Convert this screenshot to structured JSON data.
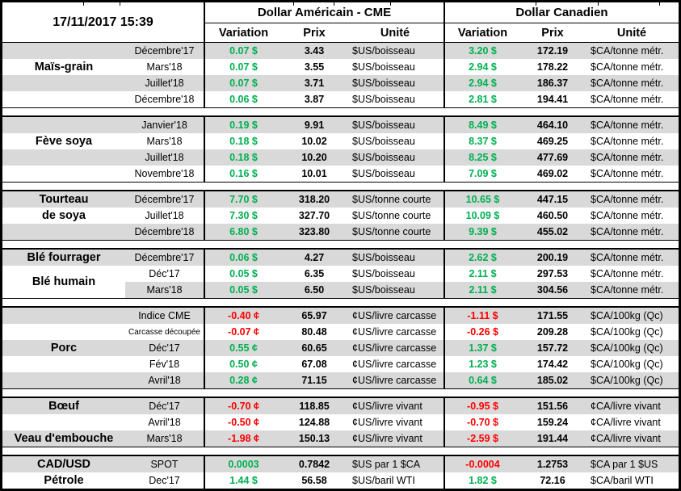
{
  "chart_data": {
    "type": "table",
    "timestamp": "17/11/2017 15:39",
    "column_groups": {
      "us": "Dollar Américain - CME",
      "ca": "Dollar Canadien"
    },
    "sub_columns": {
      "variation": "Variation",
      "prix": "Prix",
      "unite": "Unité"
    },
    "colors": {
      "positive": "#00B050",
      "negative": "#FF0000",
      "row_stripe": "#D9D9D9",
      "border": "#000000"
    },
    "sections": [
      {
        "labels": [
          {
            "text": "Maïs-grain",
            "row": 1
          }
        ],
        "rows": [
          {
            "month": "Décembre'17",
            "us": {
              "variation": "0.07 $",
              "direction": "up",
              "prix": "3.43",
              "unite": "$US/boisseau"
            },
            "ca": {
              "variation": "3.20 $",
              "direction": "up",
              "prix": "172.19",
              "unite": "$CA/tonne métr."
            }
          },
          {
            "month": "Mars'18",
            "us": {
              "variation": "0.07 $",
              "direction": "up",
              "prix": "3.55",
              "unite": "$US/boisseau"
            },
            "ca": {
              "variation": "2.94 $",
              "direction": "up",
              "prix": "178.22",
              "unite": "$CA/tonne métr."
            }
          },
          {
            "month": "Juillet'18",
            "us": {
              "variation": "0.07 $",
              "direction": "up",
              "prix": "3.71",
              "unite": "$US/boisseau"
            },
            "ca": {
              "variation": "2.94 $",
              "direction": "up",
              "prix": "186.37",
              "unite": "$CA/tonne métr."
            }
          },
          {
            "month": "Décembre'18",
            "us": {
              "variation": "0.06 $",
              "direction": "up",
              "prix": "3.87",
              "unite": "$US/boisseau"
            },
            "ca": {
              "variation": "2.81 $",
              "direction": "up",
              "prix": "194.41",
              "unite": "$CA/tonne métr."
            }
          }
        ]
      },
      {
        "labels": [
          {
            "text": "Fève soya",
            "row": 1
          }
        ],
        "rows": [
          {
            "month": "Janvier'18",
            "us": {
              "variation": "0.19 $",
              "direction": "up",
              "prix": "9.91",
              "unite": "$US/boisseau"
            },
            "ca": {
              "variation": "8.49 $",
              "direction": "up",
              "prix": "464.10",
              "unite": "$CA/tonne métr."
            }
          },
          {
            "month": "Mars'18",
            "us": {
              "variation": "0.18 $",
              "direction": "up",
              "prix": "10.02",
              "unite": "$US/boisseau"
            },
            "ca": {
              "variation": "8.37 $",
              "direction": "up",
              "prix": "469.25",
              "unite": "$CA/tonne métr."
            }
          },
          {
            "month": "Juillet'18",
            "us": {
              "variation": "0.18 $",
              "direction": "up",
              "prix": "10.20",
              "unite": "$US/boisseau"
            },
            "ca": {
              "variation": "8.25 $",
              "direction": "up",
              "prix": "477.69",
              "unite": "$CA/tonne métr."
            }
          },
          {
            "month": "Novembre'18",
            "us": {
              "variation": "0.16 $",
              "direction": "up",
              "prix": "10.01",
              "unite": "$US/boisseau"
            },
            "ca": {
              "variation": "7.09 $",
              "direction": "up",
              "prix": "469.02",
              "unite": "$CA/tonne métr."
            }
          }
        ]
      },
      {
        "labels": [
          {
            "text": "Tourteau",
            "row": 0
          },
          {
            "text": "de soya",
            "row": 1
          }
        ],
        "rows": [
          {
            "month": "Décembre'17",
            "us": {
              "variation": "7.70 $",
              "direction": "up",
              "prix": "318.20",
              "unite": "$US/tonne courte"
            },
            "ca": {
              "variation": "10.65 $",
              "direction": "up",
              "prix": "447.15",
              "unite": "$CA/tonne métr."
            }
          },
          {
            "month": "Juillet'18",
            "us": {
              "variation": "7.30 $",
              "direction": "up",
              "prix": "327.70",
              "unite": "$US/tonne courte"
            },
            "ca": {
              "variation": "10.09 $",
              "direction": "up",
              "prix": "460.50",
              "unite": "$CA/tonne métr."
            }
          },
          {
            "month": "Décembre'18",
            "us": {
              "variation": "6.80 $",
              "direction": "up",
              "prix": "323.80",
              "unite": "$US/tonne courte"
            },
            "ca": {
              "variation": "9.39 $",
              "direction": "up",
              "prix": "455.02",
              "unite": "$CA/tonne métr."
            }
          }
        ]
      },
      {
        "labels": [
          {
            "text": "Blé fourrager",
            "row": 0
          },
          {
            "text": "Blé humain",
            "row": 1.5
          }
        ],
        "rows": [
          {
            "month": "Décembre'17",
            "us": {
              "variation": "0.06 $",
              "direction": "up",
              "prix": "4.27",
              "unite": "$US/boisseau"
            },
            "ca": {
              "variation": "2.62 $",
              "direction": "up",
              "prix": "200.19",
              "unite": "$CA/tonne métr."
            }
          },
          {
            "month": "Déc'17",
            "us": {
              "variation": "0.05 $",
              "direction": "up",
              "prix": "6.35",
              "unite": "$US/boisseau"
            },
            "ca": {
              "variation": "2.11 $",
              "direction": "up",
              "prix": "297.53",
              "unite": "$CA/tonne métr."
            }
          },
          {
            "month": "Mars'18",
            "stripe_from_month": true,
            "us": {
              "variation": "0.05 $",
              "direction": "up",
              "prix": "6.50",
              "unite": "$US/boisseau"
            },
            "ca": {
              "variation": "2.11 $",
              "direction": "up",
              "prix": "304.56",
              "unite": "$CA/tonne métr."
            }
          }
        ]
      },
      {
        "labels": [
          {
            "text": "Porc",
            "row": 2
          }
        ],
        "rows": [
          {
            "month": "Indice CME",
            "us": {
              "variation": "-0.40 ¢",
              "direction": "down",
              "prix": "65.97",
              "unite": "¢US/livre carcasse"
            },
            "ca": {
              "variation": "-1.11 $",
              "direction": "down",
              "prix": "171.55",
              "unite": "$CA/100kg (Qc)"
            }
          },
          {
            "month": "Carcasse découpée",
            "small": true,
            "us": {
              "variation": "-0.07 ¢",
              "direction": "down",
              "prix": "80.48",
              "unite": "¢US/livre carcasse"
            },
            "ca": {
              "variation": "-0.26 $",
              "direction": "down",
              "prix": "209.28",
              "unite": "$CA/100kg (Qc)"
            }
          },
          {
            "month": "Déc'17",
            "us": {
              "variation": "0.55 ¢",
              "direction": "up",
              "prix": "60.65",
              "unite": "¢US/livre carcasse"
            },
            "ca": {
              "variation": "1.37 $",
              "direction": "up",
              "prix": "157.72",
              "unite": "$CA/100kg (Qc)"
            }
          },
          {
            "month": "Fév'18",
            "us": {
              "variation": "0.50 ¢",
              "direction": "up",
              "prix": "67.08",
              "unite": "¢US/livre carcasse"
            },
            "ca": {
              "variation": "1.23 $",
              "direction": "up",
              "prix": "174.42",
              "unite": "$CA/100kg (Qc)"
            }
          },
          {
            "month": "Avril'18",
            "us": {
              "variation": "0.28 ¢",
              "direction": "up",
              "prix": "71.15",
              "unite": "¢US/livre carcasse"
            },
            "ca": {
              "variation": "0.64 $",
              "direction": "up",
              "prix": "185.02",
              "unite": "$CA/100kg (Qc)"
            }
          }
        ]
      },
      {
        "labels": [
          {
            "text": "Bœuf",
            "row": 0
          },
          {
            "text": "Veau d'embouche",
            "row": 2
          }
        ],
        "rows": [
          {
            "month": "Déc'17",
            "us": {
              "variation": "-0.70 ¢",
              "direction": "down",
              "prix": "118.85",
              "unite": "¢US/livre vivant"
            },
            "ca": {
              "variation": "-0.95 $",
              "direction": "down",
              "prix": "151.56",
              "unite": "¢CA/livre vivant"
            }
          },
          {
            "month": "Avril'18",
            "us": {
              "variation": "-0.50 ¢",
              "direction": "down",
              "prix": "124.88",
              "unite": "¢US/livre vivant"
            },
            "ca": {
              "variation": "-0.70 $",
              "direction": "down",
              "prix": "159.24",
              "unite": "¢CA/livre vivant"
            }
          },
          {
            "month": "Mars'18",
            "us": {
              "variation": "-1.98 ¢",
              "direction": "down",
              "prix": "150.13",
              "unite": "¢US/livre vivant"
            },
            "ca": {
              "variation": "-2.59 $",
              "direction": "down",
              "prix": "191.44",
              "unite": "¢CA/livre vivant"
            }
          }
        ]
      },
      {
        "labels": [
          {
            "text": "CAD/USD",
            "row": 0
          },
          {
            "text": "Pétrole",
            "row": 1
          }
        ],
        "rows": [
          {
            "month": "SPOT",
            "us": {
              "variation": "0.0003",
              "direction": "up",
              "prix": "0.7842",
              "unite": "$US par 1 $CA"
            },
            "ca": {
              "variation": "-0.0004",
              "direction": "down",
              "prix": "1.2753",
              "unite": "$CA par 1 $US"
            }
          },
          {
            "month": "Dec'17",
            "us": {
              "variation": "1.44 $",
              "direction": "up",
              "prix": "56.58",
              "unite": "$US/baril WTI"
            },
            "ca": {
              "variation": "1.82 $",
              "direction": "up",
              "prix": "72.16",
              "unite": "$CA/baril WTI"
            }
          }
        ]
      }
    ]
  }
}
